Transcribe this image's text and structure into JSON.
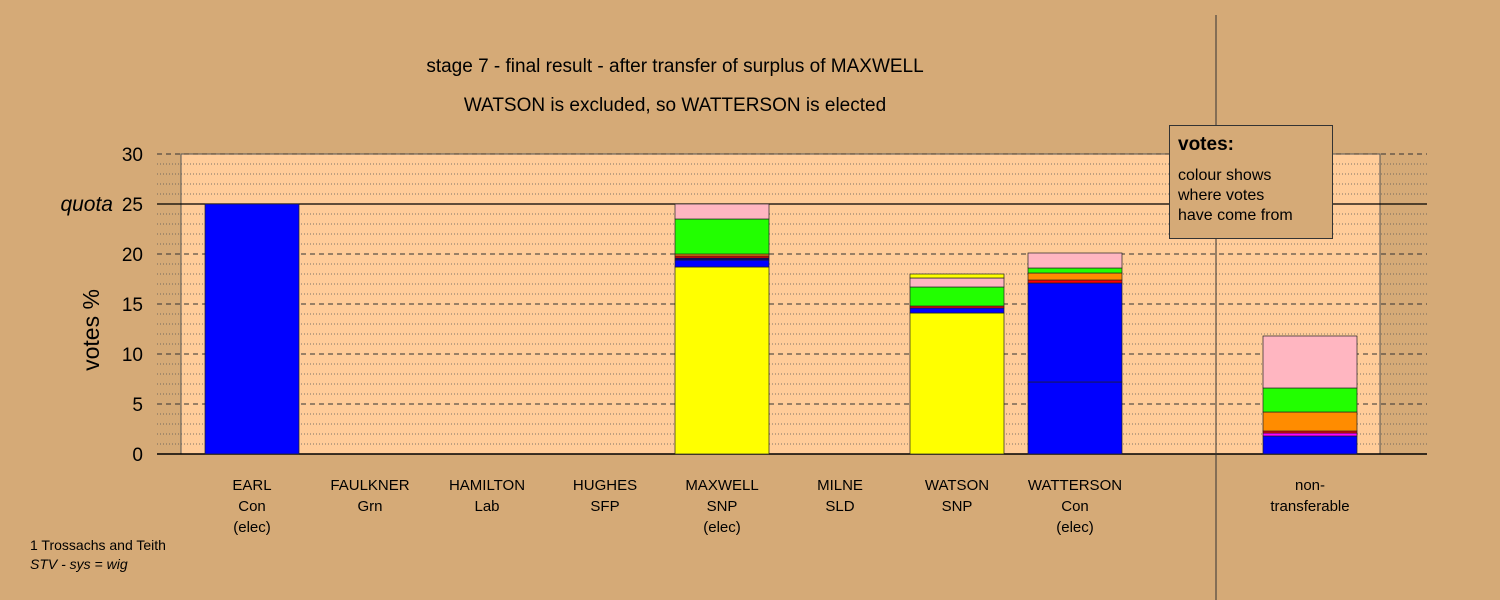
{
  "chart_data": {
    "type": "bar",
    "stacked": true,
    "title": "stage 7 - final result - after transfer of surplus of MAXWELL",
    "subtitle": "WATSON is excluded, so WATTERSON is elected",
    "ylabel": "votes %",
    "ylim": [
      0,
      30
    ],
    "yticks": [
      0,
      5,
      10,
      15,
      20,
      25,
      30
    ],
    "quota": 25,
    "quota_label": "quota",
    "grid": true,
    "legend": {
      "title": "votes:",
      "lines": [
        "colour shows",
        "where votes",
        "have come from"
      ],
      "placement": "top-right"
    },
    "candidates": [
      {
        "name": "EARL",
        "party": "Con",
        "status": "(elec)",
        "segments": [
          {
            "value": 25.0,
            "color": "#0000FF"
          }
        ]
      },
      {
        "name": "FAULKNER",
        "party": "Grn",
        "status": "",
        "segments": []
      },
      {
        "name": "HAMILTON",
        "party": "Lab",
        "status": "",
        "segments": []
      },
      {
        "name": "HUGHES",
        "party": "SFP",
        "status": "",
        "segments": []
      },
      {
        "name": "MAXWELL",
        "party": "SNP",
        "status": "(elec)",
        "segments": [
          {
            "value": 18.7,
            "color": "#FFFF00"
          },
          {
            "value": 0.7,
            "color": "#0000FF"
          },
          {
            "value": 0.2,
            "color": "#000080"
          },
          {
            "value": 0.2,
            "color": "#FF0000"
          },
          {
            "value": 0.2,
            "color": "#FF8C00"
          },
          {
            "value": 3.5,
            "color": "#22FF00"
          },
          {
            "value": 1.5,
            "color": "#FFB6C1"
          }
        ]
      },
      {
        "name": "MILNE",
        "party": "SLD",
        "status": "",
        "segments": []
      },
      {
        "name": "WATSON",
        "party": "SNP",
        "status": "",
        "segments": [
          {
            "value": 14.1,
            "color": "#FFFF00"
          },
          {
            "value": 0.5,
            "color": "#0000FF"
          },
          {
            "value": 0.2,
            "color": "#FF0000"
          },
          {
            "value": 1.9,
            "color": "#22FF00"
          },
          {
            "value": 0.9,
            "color": "#FFB6C1"
          },
          {
            "value": 0.4,
            "color": "#FFFF00"
          }
        ]
      },
      {
        "name": "WATTERSON",
        "party": "Con",
        "status": "(elec)",
        "segments": [
          {
            "value": 7.2,
            "color": "#0000FF"
          },
          {
            "value": 9.9,
            "color": "#0000FF"
          },
          {
            "value": 0.3,
            "color": "#FF0000"
          },
          {
            "value": 0.7,
            "color": "#FF8C00"
          },
          {
            "value": 0.5,
            "color": "#22FF00"
          },
          {
            "value": 1.5,
            "color": "#FFB6C1"
          }
        ]
      }
    ],
    "non_transferable": {
      "label_line1": "non-",
      "label_line2": "transferable",
      "segments": [
        {
          "value": 1.8,
          "color": "#0000FF"
        },
        {
          "value": 0.3,
          "color": "#FF00FF"
        },
        {
          "value": 0.2,
          "color": "#FF0000"
        },
        {
          "value": 1.9,
          "color": "#FF8C00"
        },
        {
          "value": 2.4,
          "color": "#22FF00"
        },
        {
          "value": 5.2,
          "color": "#FFB6C1"
        }
      ]
    }
  },
  "footer": {
    "line1": "1 Trossachs and Teith",
    "line2": "STV - sys = wig"
  }
}
